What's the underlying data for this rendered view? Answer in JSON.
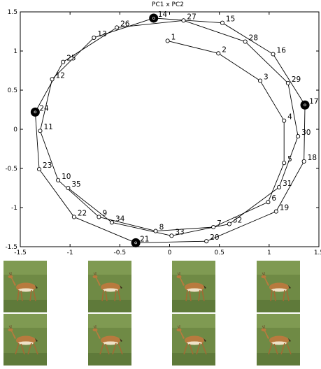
{
  "chart_data": {
    "type": "scatter",
    "title": "PC1 x PC2",
    "xlabel": "",
    "ylabel": "",
    "xlim": [
      -1.5,
      1.5
    ],
    "ylim": [
      -1.5,
      1.5
    ],
    "x_ticks": [
      "-1.5",
      "-1",
      "-0.5",
      "0",
      "0.5",
      "1",
      "1.5"
    ],
    "y_ticks": [
      "1.5",
      "1",
      "0.5",
      "0",
      "-0.5",
      "-1",
      "-1.5"
    ],
    "x_tick_values": [
      -1.5,
      -1,
      -0.5,
      0,
      0.5,
      1,
      1.5
    ],
    "y_tick_values": [
      1.5,
      1,
      0.5,
      0,
      -0.5,
      -1,
      -1.5
    ],
    "grid": false,
    "points": [
      {
        "id": "1",
        "x": -0.02,
        "y": 1.13
      },
      {
        "id": "2",
        "x": 0.49,
        "y": 0.97
      },
      {
        "id": "3",
        "x": 0.91,
        "y": 0.62
      },
      {
        "id": "4",
        "x": 1.15,
        "y": 0.11
      },
      {
        "id": "5",
        "x": 1.15,
        "y": -0.43
      },
      {
        "id": "6",
        "x": 0.99,
        "y": -0.93
      },
      {
        "id": "7",
        "x": 0.44,
        "y": -1.25
      },
      {
        "id": "8",
        "x": -0.14,
        "y": -1.3
      },
      {
        "id": "9",
        "x": -0.71,
        "y": -1.12
      },
      {
        "id": "10",
        "x": -1.12,
        "y": -0.65
      },
      {
        "id": "11",
        "x": -1.3,
        "y": -0.02
      },
      {
        "id": "12",
        "x": -1.18,
        "y": 0.64
      },
      {
        "id": "13",
        "x": -0.76,
        "y": 1.17
      },
      {
        "id": "14",
        "x": -0.16,
        "y": 1.42
      },
      {
        "id": "15",
        "x": 0.53,
        "y": 1.36
      },
      {
        "id": "16",
        "x": 1.04,
        "y": 0.96
      },
      {
        "id": "17",
        "x": 1.36,
        "y": 0.31
      },
      {
        "id": "18",
        "x": 1.35,
        "y": -0.41
      },
      {
        "id": "19",
        "x": 1.07,
        "y": -1.05
      },
      {
        "id": "20",
        "x": 0.37,
        "y": -1.43
      },
      {
        "id": "21",
        "x": -0.34,
        "y": -1.45
      },
      {
        "id": "22",
        "x": -0.96,
        "y": -1.12
      },
      {
        "id": "23",
        "x": -1.31,
        "y": -0.51
      },
      {
        "id": "24",
        "x": -1.35,
        "y": 0.22
      },
      {
        "id": "25",
        "x": -1.07,
        "y": 0.86
      },
      {
        "id": "26",
        "x": -0.53,
        "y": 1.3
      },
      {
        "id": "27",
        "x": 0.14,
        "y": 1.39
      },
      {
        "id": "28",
        "x": 0.76,
        "y": 1.12
      },
      {
        "id": "29",
        "x": 1.19,
        "y": 0.59
      },
      {
        "id": "30",
        "x": 1.29,
        "y": -0.09
      },
      {
        "id": "31",
        "x": 1.1,
        "y": -0.74
      },
      {
        "id": "32",
        "x": 0.6,
        "y": -1.21
      },
      {
        "id": "33",
        "x": 0.02,
        "y": -1.36
      },
      {
        "id": "34",
        "x": -0.58,
        "y": -1.19
      },
      {
        "id": "35",
        "x": -1.02,
        "y": -0.75
      }
    ],
    "highlighted": [
      "14",
      "17",
      "21",
      "24"
    ]
  },
  "thumbnails": [
    {
      "description": "impala frame (PC1 x PC2 extreme)",
      "frames": 2
    },
    {
      "description": "impala frame (PC1 x PC2 extreme)",
      "frames": 2
    },
    {
      "description": "impala frame (PC1 x PC2 extreme)",
      "frames": 2
    },
    {
      "description": "impala frame (PC1 x PC2 extreme)",
      "frames": 2
    }
  ],
  "colors": {
    "line": "#000000",
    "marker": "#000000",
    "grass": "#6f8a45",
    "impala": "#b87a3e"
  }
}
